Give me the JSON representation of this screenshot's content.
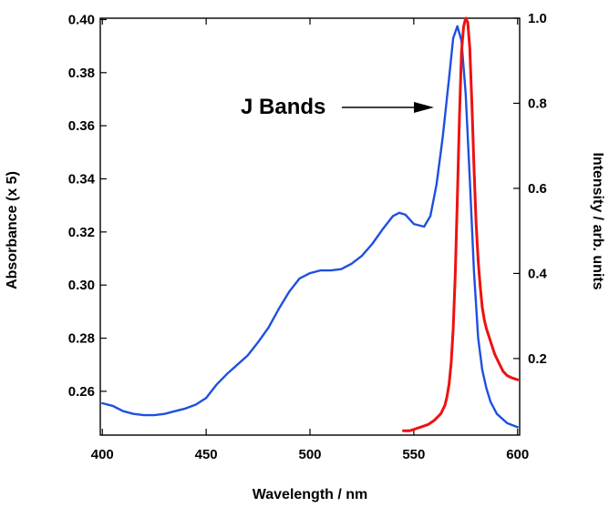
{
  "chart_data": {
    "type": "line",
    "title": "",
    "xlabel": "Wavelength / nm",
    "ylabel_left": "Absorbance (x 5)",
    "ylabel_right": "Intensity / arb. units",
    "xlim": [
      399,
      601
    ],
    "ylim_left": [
      0.2435,
      0.4005
    ],
    "ylim_right": [
      0.02,
      1.0
    ],
    "x_ticks": [
      400,
      450,
      500,
      550,
      600
    ],
    "y_ticks_left": [
      0.26,
      0.28,
      0.3,
      0.32,
      0.34,
      0.36,
      0.38,
      0.4
    ],
    "y_ticks_right": [
      0.2,
      0.4,
      0.6,
      0.8,
      1.0
    ],
    "x_tick_labels": [
      "400",
      "450",
      "500",
      "550",
      "600"
    ],
    "y_tick_labels_left": [
      "0.26",
      "0.28",
      "0.30",
      "0.32",
      "0.34",
      "0.36",
      "0.38",
      "0.40"
    ],
    "y_tick_labels_right": [
      "0.2",
      "0.4",
      "0.6",
      "0.8",
      "1.0"
    ],
    "grid": false,
    "legend": "none",
    "annotation": {
      "text": "J Bands",
      "arrow_to": {
        "x": 565,
        "y_left": 0.367
      }
    },
    "series": [
      {
        "color": "#1f4fe0",
        "axis": "left",
        "x": [
          400,
          405,
          410,
          415,
          420,
          425,
          430,
          435,
          440,
          445,
          450,
          455,
          460,
          465,
          470,
          475,
          480,
          485,
          490,
          495,
          500,
          505,
          510,
          515,
          520,
          525,
          530,
          535,
          540,
          543,
          546,
          550,
          555,
          558,
          561,
          564,
          567,
          569,
          571,
          573,
          575,
          577,
          579,
          581,
          583,
          585,
          587,
          590,
          595,
          600
        ],
        "y": [
          0.2555,
          0.2545,
          0.2525,
          0.2515,
          0.251,
          0.251,
          0.2515,
          0.2525,
          0.2535,
          0.255,
          0.2575,
          0.2625,
          0.2665,
          0.27,
          0.2735,
          0.2785,
          0.284,
          0.291,
          0.2975,
          0.3025,
          0.3045,
          0.3055,
          0.3055,
          0.306,
          0.308,
          0.311,
          0.3155,
          0.321,
          0.326,
          0.3272,
          0.3265,
          0.323,
          0.322,
          0.326,
          0.338,
          0.356,
          0.378,
          0.393,
          0.3975,
          0.392,
          0.372,
          0.34,
          0.305,
          0.28,
          0.268,
          0.261,
          0.256,
          0.2515,
          0.248,
          0.2465
        ]
      },
      {
        "color": "#ee1111",
        "axis": "right",
        "x": [
          545,
          548,
          551,
          554,
          557,
          560,
          563,
          565,
          566,
          567,
          568,
          569,
          570,
          571,
          572,
          573,
          574,
          575,
          576,
          577,
          578,
          579,
          580,
          581,
          582,
          583,
          584,
          585,
          587,
          589,
          591,
          593,
          595,
          597,
          600
        ],
        "y": [
          0.03,
          0.03,
          0.035,
          0.04,
          0.045,
          0.055,
          0.07,
          0.09,
          0.11,
          0.14,
          0.19,
          0.27,
          0.4,
          0.58,
          0.77,
          0.92,
          0.98,
          1.0,
          0.99,
          0.93,
          0.8,
          0.65,
          0.52,
          0.43,
          0.37,
          0.32,
          0.29,
          0.27,
          0.24,
          0.21,
          0.19,
          0.17,
          0.16,
          0.155,
          0.15
        ]
      }
    ]
  }
}
